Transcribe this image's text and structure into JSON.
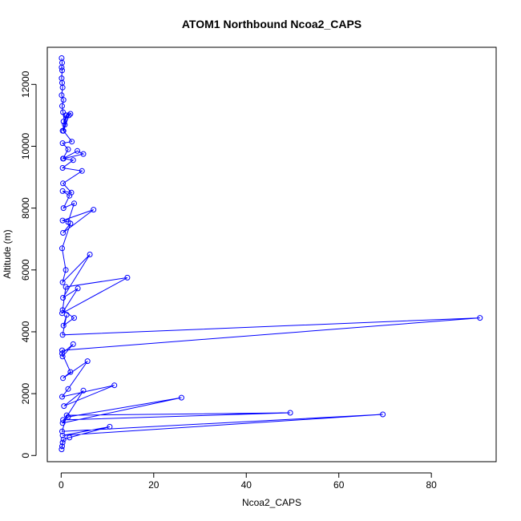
{
  "chart_data": {
    "type": "line",
    "title": "ATOM1 Northbound Ncoa2_CAPS",
    "xlabel": "Ncoa2_CAPS",
    "ylabel": "Altitude (m)",
    "xlim": [
      -3,
      94
    ],
    "ylim": [
      -200,
      13200
    ],
    "xticks": [
      0,
      20,
      40,
      60,
      80
    ],
    "yticks": [
      0,
      2000,
      4000,
      6000,
      8000,
      10000,
      12000
    ],
    "grid": false,
    "colors": {
      "series": "#0000ff"
    },
    "series": [
      {
        "x": [
          0.1,
          0.2,
          0.3,
          0.5,
          1.8,
          10.5,
          0.3,
          69.5,
          0.2,
          1.2,
          49.5,
          0.4,
          1.5,
          26.0,
          0.3,
          4.8,
          0.6,
          11.5,
          0.2,
          1.5,
          5.7,
          0.4,
          2.0,
          0.2,
          2.6,
          0.3,
          0.2,
          90.5,
          0.3,
          1.2,
          0.5,
          2.8,
          0.3,
          1.0,
          14.3,
          0.2,
          3.6,
          0.4,
          6.2,
          0.3,
          1.0,
          0.2,
          2.0,
          0.4,
          7.0,
          0.3,
          1.5,
          2.8,
          0.5,
          1.8,
          0.3,
          2.2,
          0.4,
          4.5,
          0.3,
          2.6,
          0.5,
          4.8,
          3.5,
          0.4,
          1.5,
          0.3,
          2.3,
          0.5,
          1.7,
          0.3,
          1.0,
          2.0,
          0.5,
          1.2,
          0.8,
          0.4,
          0.2,
          0.5,
          0.1,
          0.3,
          0.2,
          0.1,
          0.2,
          0.1,
          0.2,
          0.1
        ],
        "y": [
          200,
          300,
          420,
          520,
          580,
          930,
          650,
          1330,
          780,
          1300,
          1380,
          1150,
          1250,
          1870,
          1050,
          2100,
          1600,
          2270,
          1900,
          2150,
          3050,
          2500,
          2700,
          3300,
          3600,
          3200,
          3400,
          4450,
          3900,
          4550,
          4200,
          4450,
          4700,
          5450,
          5750,
          4600,
          5400,
          5100,
          6500,
          5600,
          6000,
          6700,
          7500,
          7200,
          7950,
          7600,
          7550,
          8150,
          8000,
          8400,
          8550,
          8500,
          8800,
          9200,
          9300,
          9550,
          9600,
          9750,
          9850,
          9600,
          9900,
          10100,
          10150,
          10500,
          11000,
          10500,
          11000,
          11050,
          10800,
          11000,
          10700,
          11100,
          11300,
          11500,
          11650,
          11900,
          12050,
          12200,
          12450,
          12550,
          12700,
          12850
        ]
      }
    ]
  }
}
